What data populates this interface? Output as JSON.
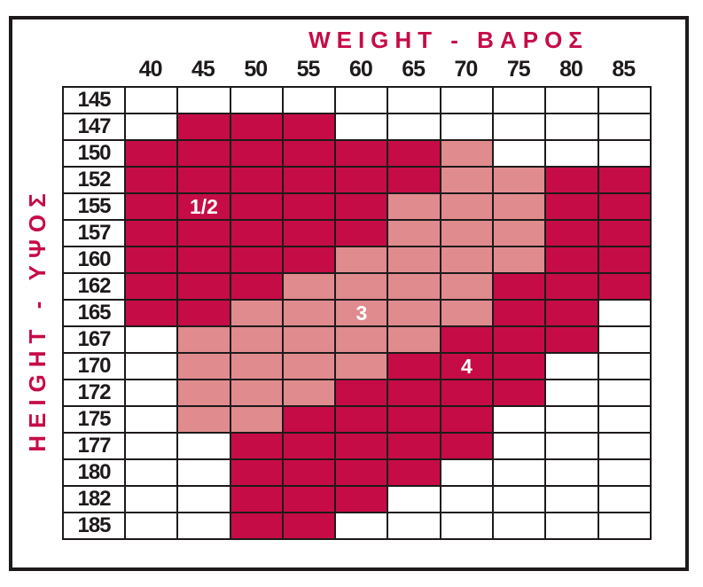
{
  "chart_data": {
    "type": "heatmap",
    "title": "WEIGHT - ΒΑΡΟΣ",
    "xlabel": "WEIGHT - ΒΑΡΟΣ",
    "ylabel": "HEIGHT - ΥΨΟΣ",
    "x_ticks": [
      "40",
      "45",
      "50",
      "55",
      "60",
      "65",
      "70",
      "75",
      "80",
      "85"
    ],
    "y_ticks": [
      "145",
      "147",
      "150",
      "152",
      "155",
      "157",
      "160",
      "162",
      "165",
      "167",
      "170",
      "172",
      "175",
      "177",
      "180",
      "182",
      "185"
    ],
    "legend_note": "0 = empty, 1 = dark crimson zone, 2 = light pink zone",
    "palette": {
      "0": "#ffffff",
      "1": "#c60c46",
      "2": "#e08b8e"
    },
    "grid_on": true,
    "matrix": [
      [
        0,
        0,
        0,
        0,
        0,
        0,
        0,
        0,
        0,
        0
      ],
      [
        0,
        1,
        1,
        1,
        0,
        0,
        0,
        0,
        0,
        0
      ],
      [
        1,
        1,
        1,
        1,
        1,
        1,
        2,
        0,
        0,
        0
      ],
      [
        1,
        1,
        1,
        1,
        1,
        1,
        2,
        2,
        1,
        1
      ],
      [
        1,
        1,
        1,
        1,
        1,
        2,
        2,
        2,
        1,
        1
      ],
      [
        1,
        1,
        1,
        1,
        1,
        2,
        2,
        2,
        1,
        1
      ],
      [
        1,
        1,
        1,
        1,
        2,
        2,
        2,
        2,
        1,
        1
      ],
      [
        1,
        1,
        1,
        2,
        2,
        2,
        2,
        1,
        1,
        1
      ],
      [
        1,
        1,
        2,
        2,
        2,
        2,
        2,
        1,
        1,
        0
      ],
      [
        0,
        2,
        2,
        2,
        2,
        2,
        1,
        1,
        1,
        0
      ],
      [
        0,
        2,
        2,
        2,
        2,
        1,
        1,
        1,
        0,
        0
      ],
      [
        0,
        2,
        2,
        2,
        1,
        1,
        1,
        1,
        0,
        0
      ],
      [
        0,
        2,
        2,
        1,
        1,
        1,
        1,
        0,
        0,
        0
      ],
      [
        0,
        0,
        1,
        1,
        1,
        1,
        1,
        0,
        0,
        0
      ],
      [
        0,
        0,
        1,
        1,
        1,
        1,
        0,
        0,
        0,
        0
      ],
      [
        0,
        0,
        1,
        1,
        1,
        0,
        0,
        0,
        0,
        0
      ],
      [
        0,
        0,
        1,
        1,
        0,
        0,
        0,
        0,
        0,
        0
      ]
    ],
    "size_labels": [
      {
        "text": "1/2",
        "row_index": 4,
        "col_index": 1,
        "zone": "dark"
      },
      {
        "text": "3",
        "row_index": 8,
        "col_index": 4,
        "zone": "light"
      },
      {
        "text": "4",
        "row_index": 10,
        "col_index": 6,
        "zone": "dark"
      }
    ],
    "colors": {
      "accent_crimson": "#c60c46",
      "zone_light_pink": "#e08b8e",
      "text_black": "#1e1a1b"
    }
  }
}
